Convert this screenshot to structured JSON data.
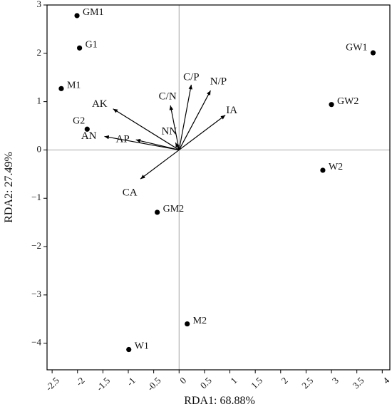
{
  "chart_data": {
    "type": "scatter",
    "title": "",
    "xlabel": "RDA1: 68.88%",
    "ylabel": "RDA2: 27.49%",
    "xlim": [
      -2.6,
      4.15
    ],
    "ylim": [
      -4.55,
      3.0
    ],
    "xticks": [
      -2.5,
      -2,
      -1.5,
      -1,
      -0.5,
      0,
      0.5,
      1,
      1.5,
      2,
      2.5,
      3,
      3.5,
      4
    ],
    "xtick_labels": [
      "-2.5",
      "-2",
      "-1.5",
      "-1",
      "-0.5",
      "0",
      "0.5",
      "1",
      "1.5",
      "2",
      "2.5",
      "3",
      "3.5",
      "4"
    ],
    "yticks": [
      -4,
      -3,
      -2,
      -1,
      0,
      1,
      2,
      3
    ],
    "ytick_labels": [
      "−4",
      "−3",
      "−2",
      "−1",
      "0",
      "1",
      "2",
      "3"
    ],
    "grid": false,
    "zero_lines": true,
    "points": [
      {
        "label": "GM1",
        "x": -2.01,
        "y": 2.78
      },
      {
        "label": "G1",
        "x": -1.96,
        "y": 2.11
      },
      {
        "label": "M1",
        "x": -2.32,
        "y": 1.27
      },
      {
        "label": "G2",
        "x": -1.81,
        "y": 0.43
      },
      {
        "label": "GW1",
        "x": 3.82,
        "y": 2.01
      },
      {
        "label": "GW2",
        "x": 3.0,
        "y": 0.94
      },
      {
        "label": "W2",
        "x": 2.83,
        "y": -0.42
      },
      {
        "label": "GM2",
        "x": -0.43,
        "y": -1.29
      },
      {
        "label": "M2",
        "x": 0.16,
        "y": -3.6
      },
      {
        "label": "W1",
        "x": -0.99,
        "y": -4.13
      }
    ],
    "arrows": [
      {
        "label": "C/P",
        "x": 0.24,
        "y": 1.35
      },
      {
        "label": "N/P",
        "x": 0.62,
        "y": 1.23
      },
      {
        "label": "IA",
        "x": 0.91,
        "y": 0.72
      },
      {
        "label": "C/N",
        "x": -0.17,
        "y": 0.92
      },
      {
        "label": "AK",
        "x": -1.3,
        "y": 0.85
      },
      {
        "label": "AN",
        "x": -1.47,
        "y": 0.28
      },
      {
        "label": "AP",
        "x": -0.85,
        "y": 0.21
      },
      {
        "label": "NN",
        "x": -0.07,
        "y": 0.15
      },
      {
        "label": "CA",
        "x": -0.76,
        "y": -0.6
      }
    ],
    "colors": {
      "points": "#000000",
      "arrows": "#000000",
      "zero_lines": "#a6a6a6",
      "frame": "#000000"
    }
  }
}
